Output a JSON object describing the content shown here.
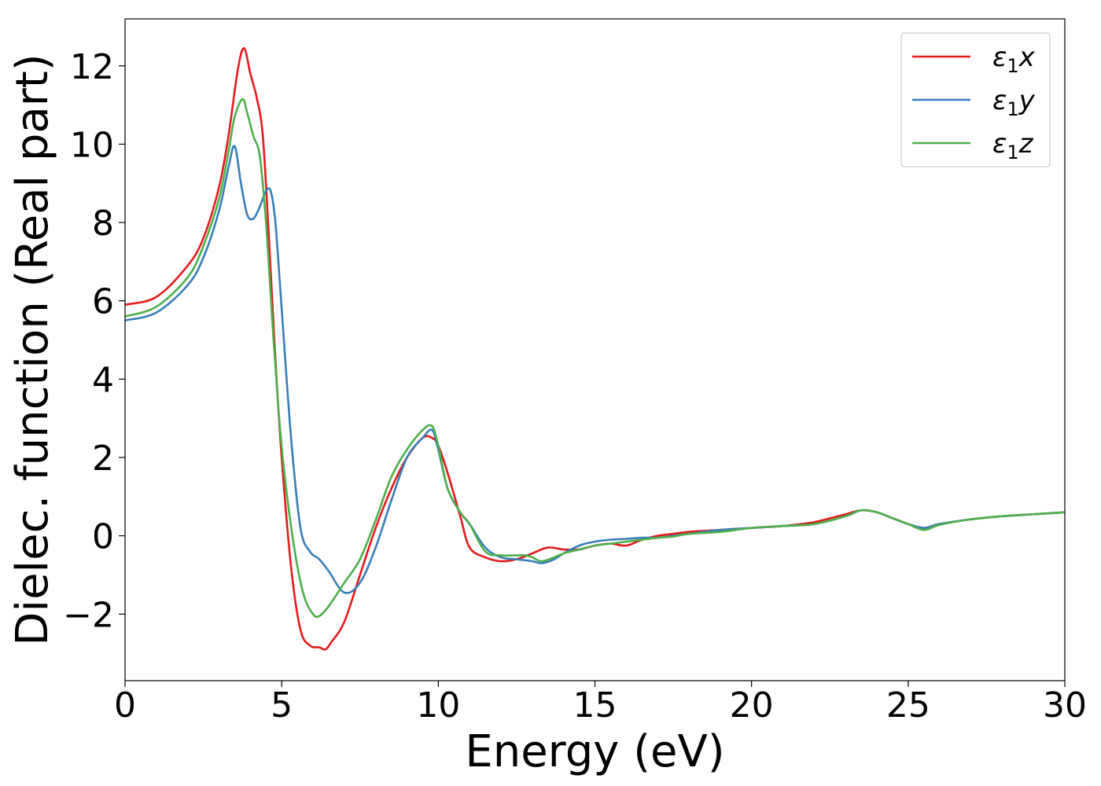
{
  "chart_data": {
    "type": "line",
    "title": "",
    "xlabel": "Energy (eV)",
    "ylabel": "Dielec. function (Real part)",
    "xlim": [
      0,
      30
    ],
    "ylim": [
      -3.7,
      13.2
    ],
    "xticks": [
      0,
      5,
      10,
      15,
      20,
      25,
      30
    ],
    "yticks": [
      -2,
      0,
      2,
      4,
      6,
      8,
      10,
      12
    ],
    "xtick_labels": [
      "0",
      "5",
      "10",
      "15",
      "20",
      "25",
      "30"
    ],
    "ytick_labels": [
      "−2",
      "0",
      "2",
      "4",
      "6",
      "8",
      "10",
      "12"
    ],
    "grid": false,
    "legend_position": "top-right",
    "series": [
      {
        "name": "ε₁x",
        "legend_main": "ε",
        "legend_sub": "1",
        "legend_suffix": "x",
        "color": "#e41a1c",
        "x": [
          0,
          1,
          2,
          2.5,
          3,
          3.3,
          3.6,
          3.8,
          4.0,
          4.2,
          4.4,
          4.6,
          4.8,
          5.0,
          5.3,
          5.6,
          5.9,
          6.2,
          6.4,
          6.6,
          7.0,
          7.5,
          8.0,
          8.5,
          9.0,
          9.5,
          9.8,
          10.0,
          10.3,
          10.7,
          11.0,
          11.5,
          12.0,
          12.5,
          13.0,
          13.5,
          14.0,
          14.5,
          15.0,
          15.5,
          16.0,
          16.5,
          17.0,
          17.5,
          18.0,
          19.0,
          20.0,
          21.0,
          22.0,
          23.0,
          23.5,
          24.0,
          24.5,
          25.0,
          25.5,
          26.0,
          27.0,
          28.0,
          29.0,
          30.0
        ],
        "y": [
          5.9,
          6.1,
          6.9,
          7.6,
          8.9,
          10.2,
          11.9,
          12.45,
          11.8,
          11.2,
          10.2,
          7.5,
          4.5,
          2.0,
          -0.8,
          -2.4,
          -2.8,
          -2.85,
          -2.9,
          -2.7,
          -2.2,
          -1.0,
          0.2,
          1.2,
          2.0,
          2.5,
          2.5,
          2.3,
          1.6,
          0.5,
          -0.3,
          -0.55,
          -0.65,
          -0.6,
          -0.45,
          -0.3,
          -0.35,
          -0.35,
          -0.25,
          -0.2,
          -0.25,
          -0.1,
          0.0,
          0.05,
          0.1,
          0.15,
          0.2,
          0.25,
          0.35,
          0.55,
          0.65,
          0.6,
          0.45,
          0.3,
          0.2,
          0.3,
          0.42,
          0.5,
          0.55,
          0.6
        ]
      },
      {
        "name": "ε₁y",
        "legend_main": "ε",
        "legend_sub": "1",
        "legend_suffix": "y",
        "color": "#377eb8",
        "x": [
          0,
          1,
          2,
          2.5,
          3,
          3.3,
          3.5,
          3.7,
          3.9,
          4.1,
          4.3,
          4.5,
          4.65,
          4.8,
          5.0,
          5.3,
          5.6,
          5.9,
          6.2,
          6.5,
          7.0,
          7.5,
          8.0,
          8.5,
          9.0,
          9.5,
          9.8,
          10.0,
          10.3,
          10.7,
          11.0,
          11.5,
          12.0,
          12.5,
          13.0,
          13.3,
          13.7,
          14.0,
          14.5,
          15.0,
          15.5,
          16.0,
          16.5,
          17.0,
          17.5,
          18.0,
          19.0,
          20.0,
          21.0,
          22.0,
          23.0,
          23.5,
          24.0,
          24.5,
          25.0,
          25.5,
          26.0,
          27.0,
          28.0,
          29.0,
          30.0
        ],
        "y": [
          5.5,
          5.7,
          6.4,
          7.1,
          8.3,
          9.4,
          9.95,
          9.0,
          8.2,
          8.1,
          8.4,
          8.8,
          8.8,
          8.0,
          5.8,
          2.5,
          0.2,
          -0.4,
          -0.6,
          -0.9,
          -1.45,
          -1.2,
          -0.3,
          0.9,
          2.0,
          2.5,
          2.7,
          2.2,
          1.2,
          0.6,
          0.3,
          -0.3,
          -0.55,
          -0.6,
          -0.65,
          -0.7,
          -0.6,
          -0.45,
          -0.25,
          -0.15,
          -0.1,
          -0.08,
          -0.05,
          -0.05,
          0.0,
          0.05,
          0.15,
          0.2,
          0.25,
          0.3,
          0.5,
          0.65,
          0.6,
          0.45,
          0.3,
          0.2,
          0.3,
          0.42,
          0.5,
          0.55,
          0.6
        ]
      },
      {
        "name": "ε₁z",
        "legend_main": "ε",
        "legend_sub": "1",
        "legend_suffix": "z",
        "color": "#4daf4a",
        "x": [
          0,
          1,
          2,
          2.5,
          3,
          3.3,
          3.5,
          3.75,
          3.9,
          4.1,
          4.3,
          4.5,
          4.7,
          4.9,
          5.1,
          5.4,
          5.7,
          6.0,
          6.2,
          6.5,
          7.0,
          7.5,
          8.0,
          8.5,
          9.0,
          9.5,
          9.8,
          10.0,
          10.3,
          10.7,
          11.0,
          11.5,
          12.0,
          12.5,
          12.8,
          13.0,
          13.3,
          13.7,
          14.0,
          14.5,
          15.0,
          15.5,
          16.0,
          16.5,
          17.0,
          17.5,
          18.0,
          19.0,
          20.0,
          21.0,
          22.0,
          23.0,
          23.5,
          24.0,
          24.5,
          25.0,
          25.5,
          26.0,
          27.0,
          28.0,
          29.0,
          30.0
        ],
        "y": [
          5.6,
          5.85,
          6.6,
          7.4,
          8.6,
          9.8,
          10.7,
          11.15,
          10.8,
          10.2,
          9.7,
          8.0,
          5.5,
          3.2,
          1.5,
          -0.3,
          -1.5,
          -2.0,
          -2.05,
          -1.8,
          -1.2,
          -0.6,
          0.4,
          1.5,
          2.2,
          2.7,
          2.8,
          2.3,
          1.2,
          0.6,
          0.3,
          -0.4,
          -0.5,
          -0.5,
          -0.5,
          -0.55,
          -0.65,
          -0.55,
          -0.45,
          -0.35,
          -0.25,
          -0.2,
          -0.15,
          -0.1,
          -0.05,
          -0.02,
          0.05,
          0.1,
          0.2,
          0.25,
          0.3,
          0.5,
          0.65,
          0.6,
          0.45,
          0.3,
          0.15,
          0.28,
          0.42,
          0.5,
          0.55,
          0.6
        ]
      }
    ]
  }
}
